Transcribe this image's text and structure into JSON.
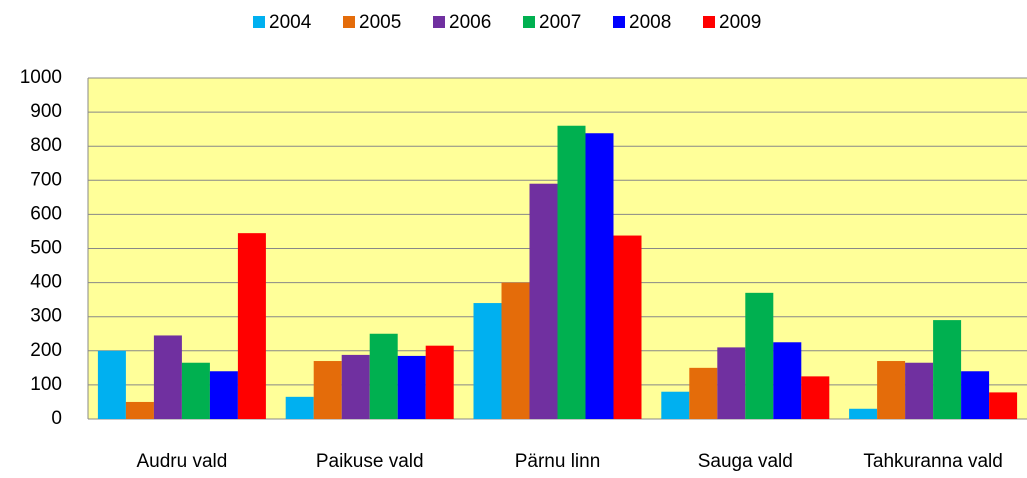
{
  "chart_data": {
    "type": "bar",
    "categories": [
      "Audru vald",
      "Paikuse vald",
      "Pärnu linn",
      "Sauga vald",
      "Tahkuranna vald"
    ],
    "series": [
      {
        "name": "2004",
        "color": "#00b0f0",
        "values": [
          200,
          65,
          340,
          80,
          30
        ]
      },
      {
        "name": "2005",
        "color": "#e46c0a",
        "values": [
          50,
          170,
          400,
          150,
          170
        ]
      },
      {
        "name": "2006",
        "color": "#7030a0",
        "values": [
          245,
          188,
          690,
          210,
          165
        ]
      },
      {
        "name": "2007",
        "color": "#00b050",
        "values": [
          165,
          250,
          860,
          370,
          290
        ]
      },
      {
        "name": "2008",
        "color": "#0000ff",
        "values": [
          140,
          185,
          838,
          225,
          140
        ]
      },
      {
        "name": "2009",
        "color": "#ff0000",
        "values": [
          545,
          215,
          538,
          125,
          78
        ]
      }
    ],
    "ylim": [
      0,
      1000
    ],
    "yticks": [
      0,
      100,
      200,
      300,
      400,
      500,
      600,
      700,
      800,
      900,
      1000
    ],
    "grid": true,
    "legend": "top",
    "plot_background": "#ffff99"
  }
}
